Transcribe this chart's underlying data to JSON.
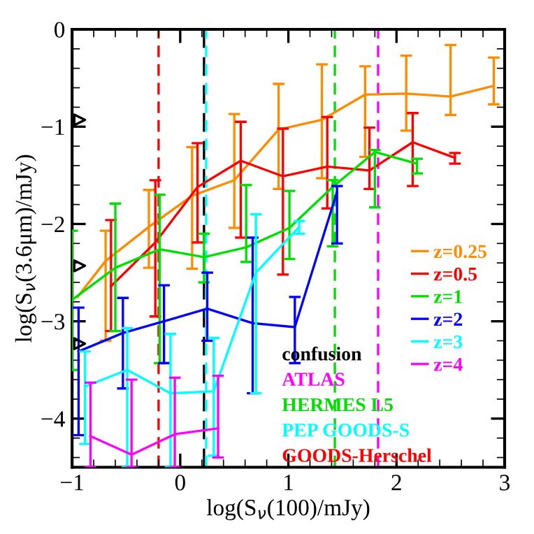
{
  "chart_data": {
    "type": "line",
    "xlabel": "log(S$_{ν}$(100)/mJy)",
    "ylabel": "log(S$_{ν}$(3.6μm)/mJy)",
    "xlim": [
      -1,
      3
    ],
    "ylim": [
      -4.5,
      0
    ],
    "xticks": [
      {
        "value": -1,
        "label": "−1"
      },
      0,
      1,
      2,
      3
    ],
    "yticks": [
      {
        "value": -4,
        "label": "−4"
      },
      {
        "value": -3,
        "label": "−3"
      },
      {
        "value": -2,
        "label": "−2"
      },
      {
        "value": -1,
        "label": "−1"
      },
      0
    ],
    "grid": false,
    "legend": "right",
    "marker": "none",
    "line_style": "solid",
    "series": [
      {
        "name": "z=0.25",
        "color": "#ff8c00",
        "x": [
          -0.95,
          -0.69,
          -0.29,
          0.11,
          0.5,
          0.91,
          1.31,
          1.71,
          2.09,
          2.5,
          2.9
        ],
        "values": [
          -2.75,
          -2.38,
          -2.03,
          -1.71,
          -1.55,
          -1.03,
          -0.93,
          -0.67,
          -0.66,
          -0.69,
          -0.58
        ],
        "errors": [
          null,
          [
            -3.2,
            -2.07
          ],
          [
            -2.45,
            -1.65
          ],
          [
            -2.46,
            -1.21
          ],
          [
            -2.04,
            -0.87
          ],
          [
            -1.64,
            -0.56
          ],
          [
            -1.53,
            -0.36
          ],
          [
            -1.31,
            -0.38
          ],
          [
            -1.04,
            -0.27
          ],
          [
            -0.88,
            -0.16
          ],
          [
            -0.77,
            -0.29
          ]
        ]
      },
      {
        "name": "z=0.5",
        "color": "#ff0000",
        "x": [
          -0.64,
          -0.23,
          0.16,
          0.56,
          0.95,
          1.36,
          1.75,
          2.15,
          2.54
        ],
        "values": [
          -2.64,
          -2.19,
          -1.62,
          -1.35,
          -1.51,
          -1.41,
          -1.45,
          -1.16,
          -1.32
        ],
        "errors": [
          [
            -3.1,
            -1.96
          ],
          [
            -2.95,
            -1.55
          ],
          [
            -2.19,
            -1.17
          ],
          [
            -2.14,
            -0.95
          ],
          [
            -2.52,
            -1.02
          ],
          [
            -1.84,
            -0.9
          ],
          [
            -1.64,
            -1.01
          ],
          [
            -1.61,
            -0.86
          ],
          [
            -1.38,
            -1.27
          ]
        ]
      },
      {
        "name": "z=1",
        "color": "#00e000",
        "x": [
          -1,
          -0.6,
          -0.19,
          0.22,
          0.61,
          1.01,
          1.41,
          1.8,
          2.19
        ],
        "values": [
          -2.78,
          -2.45,
          -2.26,
          -2.34,
          -2.24,
          -2.04,
          -1.62,
          -1.26,
          -1.38
        ],
        "errors": [
          [
            -3.5,
            -2.07
          ],
          [
            -3.1,
            -1.79
          ],
          [
            -3.43,
            -1.7
          ],
          [
            -2.6,
            -2.1
          ],
          [
            -2.39,
            -1.6
          ],
          [
            -2.36,
            -1.66
          ],
          [
            -2.23,
            -1.55
          ],
          [
            -1.83,
            -1.24
          ],
          [
            -1.48,
            -1.33
          ]
        ]
      },
      {
        "name": "z=2",
        "color": "#0000ff",
        "x": [
          -0.94,
          -0.53,
          -0.15,
          0.25,
          0.67,
          1.06,
          1.45
        ],
        "values": [
          -3.31,
          -3.12,
          -3.0,
          -2.87,
          -3.02,
          -3.06,
          -1.67
        ],
        "errors": [
          [
            -4.17,
            -2.86
          ],
          [
            -3.69,
            -2.76
          ],
          [
            -3.43,
            -2.63
          ],
          [
            -3.2,
            -2.5
          ],
          [
            -3.74,
            -2.14
          ],
          [
            -3.43,
            -2.75
          ],
          [
            -2.2,
            -1.61
          ]
        ]
      },
      {
        "name": "z=3",
        "color": "#00ffff",
        "x": [
          -0.88,
          -0.49,
          -0.09,
          0.31,
          0.7,
          1.1
        ],
        "values": [
          -3.67,
          -3.5,
          -3.74,
          -3.72,
          -2.5,
          -2.03
        ],
        "errors": [
          [
            -4.26,
            -3.31
          ],
          [
            -4.5,
            -3.07
          ],
          [
            -4.5,
            -3.13
          ],
          [
            -4.38,
            -3.17
          ],
          [
            -3.74,
            -1.9
          ],
          [
            -2.1,
            -1.97
          ]
        ]
      },
      {
        "name": "z=4",
        "color": "#ff00ff",
        "x": [
          -0.83,
          -0.45,
          -0.05,
          0.35
        ],
        "values": [
          -4.18,
          -4.37,
          -4.16,
          -4.1
        ],
        "errors": [
          [
            -4.5,
            -3.63
          ],
          [
            -4.5,
            -3.6
          ],
          [
            -4.5,
            -3.58
          ],
          [
            -4.4,
            -3.56
          ]
        ]
      },
      {
        "type": "scatter",
        "color": "#000000",
        "marker": "triangle",
        "x": [
          -0.93,
          -0.93,
          -0.93
        ],
        "values": [
          -0.93,
          -2.43,
          -3.23
        ]
      }
    ],
    "ref_lines": [
      {
        "axis": "x",
        "value": 0.22,
        "label": "confusion",
        "color": "#000000",
        "line_style": "longdash"
      },
      {
        "axis": "x",
        "value": 1.83,
        "label": "ATLAS",
        "color": "#ff00ff",
        "line_style": "dashed"
      },
      {
        "axis": "x",
        "value": 1.43,
        "label": "HERMES L5",
        "color": "#00e000",
        "line_style": "dashed"
      },
      {
        "axis": "x",
        "value": 0.24,
        "label": "PEP GOODS-S",
        "color": "#00ffff",
        "line_style": "dashed"
      },
      {
        "axis": "x",
        "value": -0.2,
        "label": "GOODS-Herschel",
        "color": "#ff0000",
        "line_style": "dashed"
      }
    ]
  }
}
